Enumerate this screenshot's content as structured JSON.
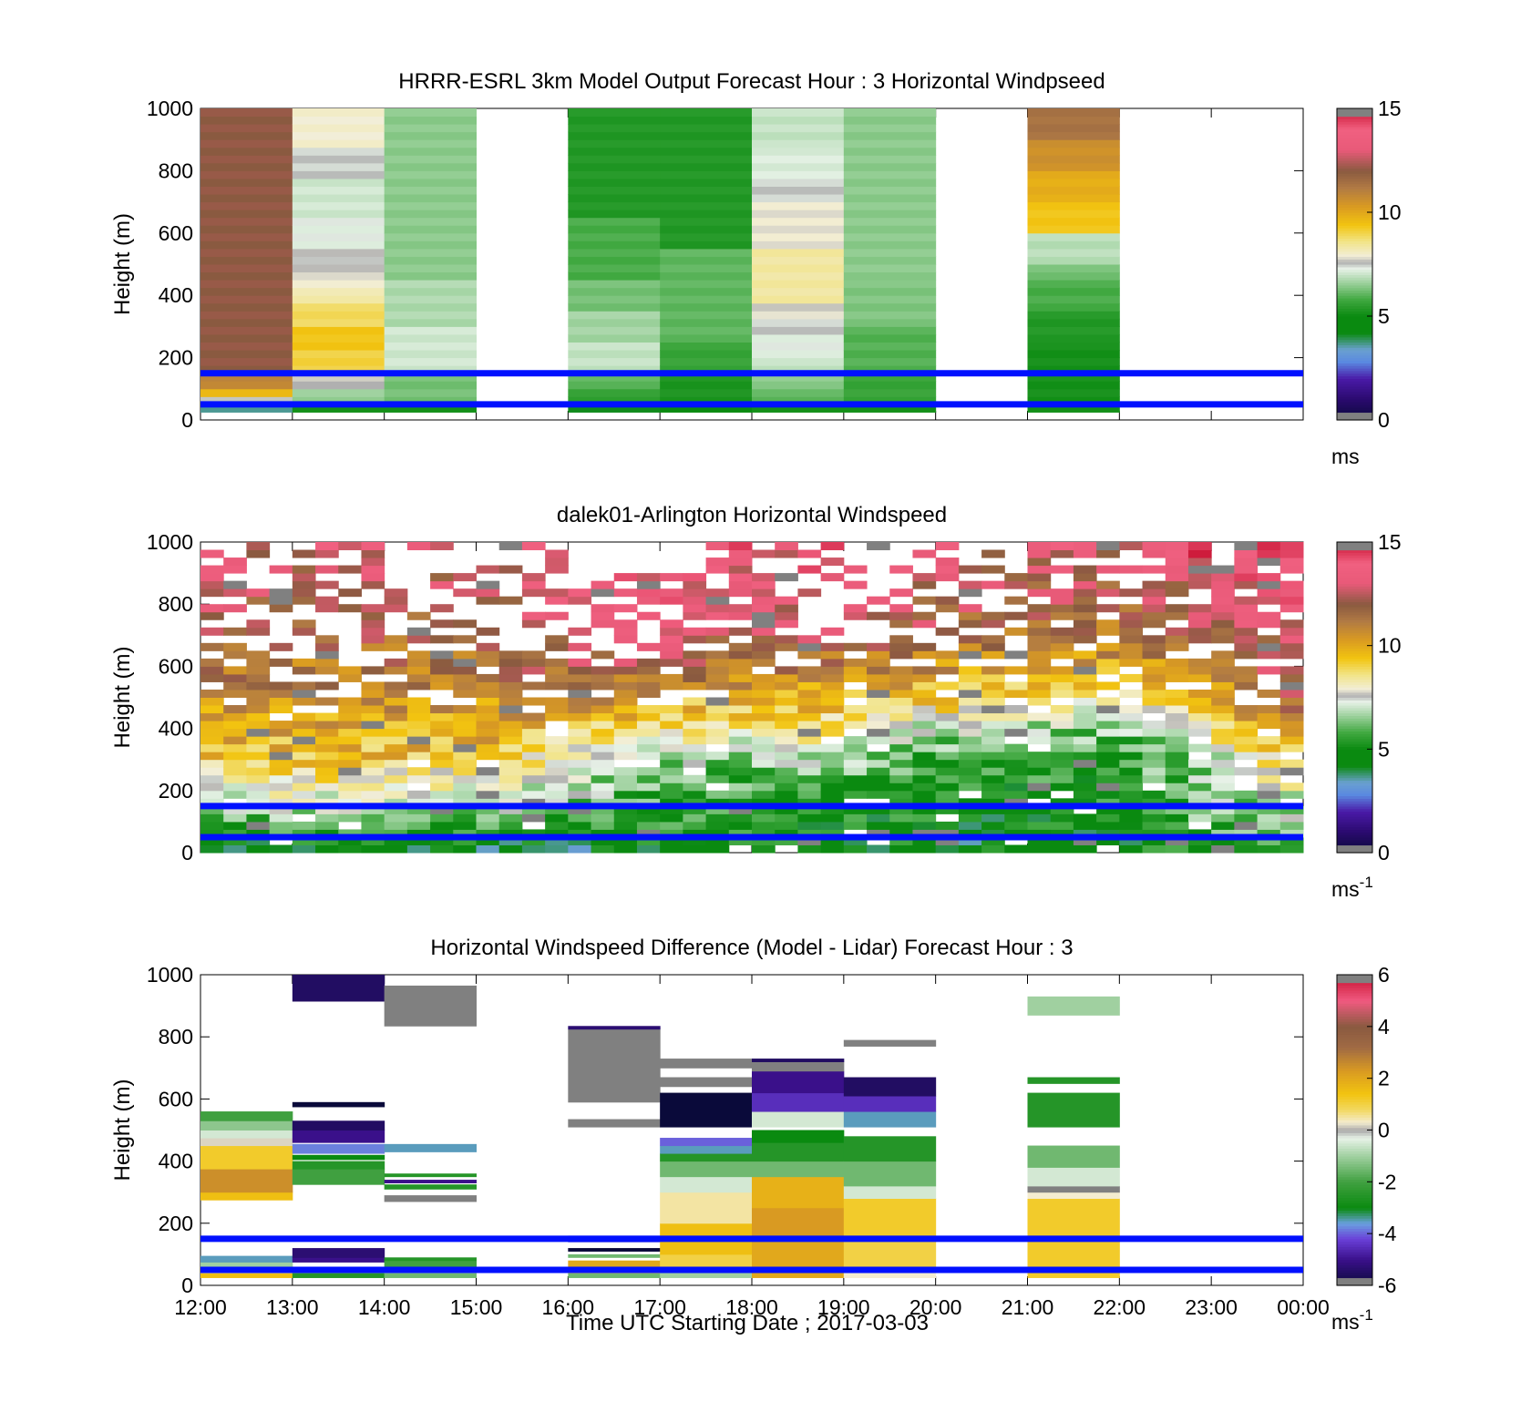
{
  "figure": {
    "xlabel": "Time UTC  Starting Date ; 2017-03-03",
    "x_ticks": [
      "12:00",
      "13:00",
      "14:00",
      "15:00",
      "16:00",
      "17:00",
      "18:00",
      "19:00",
      "20:00",
      "21:00",
      "22:00",
      "23:00",
      "00:00"
    ]
  },
  "chart_data": [
    {
      "type": "heatmap",
      "title": "HRRR-ESRL 3km Model Output   Forecast Hour : 3 Horizontal Windpseed",
      "xlabel": "",
      "ylabel": "Height (m)",
      "ylim": [
        0,
        1000
      ],
      "xlim": [
        12,
        24
      ],
      "y_ticks": [
        "0",
        "200",
        "400",
        "600",
        "800",
        "1000"
      ],
      "reference_lines_m": [
        150,
        50
      ],
      "reference_line_color": "#0010ff",
      "colorbar": {
        "ticks": [
          "0",
          "5",
          "10",
          "15"
        ],
        "range": [
          0,
          15
        ],
        "unit": "ms"
      },
      "cell_height_m": 25,
      "columns": [
        {
          "x_hour": 12,
          "segments": [
            [
              25,
              50,
              3.5
            ],
            [
              50,
              75,
              7.5
            ],
            [
              75,
              100,
              9.5
            ],
            [
              100,
              150,
              10.8
            ],
            [
              150,
              1000,
              12.0
            ]
          ]
        },
        {
          "x_hour": 13,
          "segments": [
            [
              25,
              50,
              5.0
            ],
            [
              50,
              100,
              6.5
            ],
            [
              100,
              150,
              7.6
            ],
            [
              150,
              225,
              9.0
            ],
            [
              225,
              300,
              9.3
            ],
            [
              300,
              375,
              8.8
            ],
            [
              375,
              425,
              8.2
            ],
            [
              425,
              475,
              7.8
            ],
            [
              475,
              550,
              7.5
            ],
            [
              550,
              650,
              7.2
            ],
            [
              650,
              775,
              7.0
            ],
            [
              775,
              875,
              7.4
            ],
            [
              875,
              1000,
              7.9
            ]
          ]
        },
        {
          "x_hour": 14,
          "segments": [
            [
              25,
              50,
              5.0
            ],
            [
              50,
              150,
              6.2
            ],
            [
              150,
              300,
              7.0
            ],
            [
              300,
              450,
              6.7
            ],
            [
              450,
              1000,
              6.4
            ]
          ]
        },
        {
          "x_hour": 16,
          "segments": [
            [
              25,
              50,
              4.0
            ],
            [
              50,
              100,
              5.5
            ],
            [
              100,
              150,
              6.0
            ],
            [
              150,
              250,
              6.9
            ],
            [
              250,
              350,
              6.6
            ],
            [
              350,
              450,
              6.2
            ],
            [
              450,
              650,
              5.8
            ],
            [
              650,
              1000,
              5.3
            ]
          ]
        },
        {
          "x_hour": 17,
          "segments": [
            [
              25,
              50,
              4.5
            ],
            [
              50,
              150,
              5.2
            ],
            [
              150,
              250,
              5.6
            ],
            [
              250,
              550,
              6.0
            ],
            [
              550,
              1000,
              5.3
            ]
          ]
        },
        {
          "x_hour": 18,
          "segments": [
            [
              25,
              50,
              5.0
            ],
            [
              50,
              100,
              6.0
            ],
            [
              100,
              150,
              6.4
            ],
            [
              150,
              200,
              6.9
            ],
            [
              200,
              275,
              7.2
            ],
            [
              275,
              325,
              7.4
            ],
            [
              325,
              375,
              7.7
            ],
            [
              375,
              550,
              8.3
            ],
            [
              550,
              700,
              7.8
            ],
            [
              700,
              775,
              7.4
            ],
            [
              775,
              875,
              7.1
            ],
            [
              875,
              1000,
              6.9
            ]
          ]
        },
        {
          "x_hour": 19,
          "segments": [
            [
              25,
              50,
              5.0
            ],
            [
              50,
              150,
              5.6
            ],
            [
              150,
              300,
              5.9
            ],
            [
              300,
              450,
              6.3
            ],
            [
              450,
              1000,
              6.4
            ]
          ]
        },
        {
          "x_hour": 21,
          "segments": [
            [
              25,
              50,
              5.0
            ],
            [
              50,
              250,
              5.1
            ],
            [
              250,
              350,
              5.3
            ],
            [
              350,
              450,
              5.8
            ],
            [
              450,
              500,
              6.2
            ],
            [
              500,
              600,
              6.8
            ],
            [
              600,
              700,
              9.3
            ],
            [
              700,
              800,
              9.8
            ],
            [
              800,
              900,
              10.5
            ],
            [
              900,
              1000,
              11.3
            ]
          ]
        }
      ]
    },
    {
      "type": "heatmap",
      "title": "dalek01-Arlington  Horizontal Windspeed",
      "xlabel": "",
      "ylabel": "Height (m)",
      "ylim": [
        0,
        1000
      ],
      "xlim": [
        12,
        24
      ],
      "y_ticks": [
        "0",
        "200",
        "400",
        "600",
        "800",
        "1000"
      ],
      "reference_lines_m": [
        150,
        50
      ],
      "reference_line_color": "#0010ff",
      "colorbar": {
        "ticks": [
          "0",
          "5",
          "10",
          "15"
        ],
        "range": [
          0,
          15
        ],
        "unit": "ms",
        "unit_sup": "-1"
      },
      "cell_height_m": 25,
      "time_step_hours": 0.25,
      "profiles": [
        {
          "x_hour": 12,
          "speeds": [
            4.5,
            6.0,
            7.5,
            8.5,
            9.5,
            10.0,
            10.5,
            11.0,
            11.5,
            12.0,
            12.5,
            13.0
          ]
        },
        {
          "x_hour": 15,
          "speeds": [
            4.5,
            6.0,
            7.5,
            8.5,
            9.5,
            10.0,
            10.5,
            11.0,
            11.5,
            12.0,
            12.5,
            13.0
          ]
        },
        {
          "x_hour": 16,
          "speeds": [
            4.0,
            5.5,
            6.8,
            7.5,
            8.5,
            9.5,
            10.5,
            11.5,
            12.5,
            13.0,
            13.5,
            13.5
          ]
        },
        {
          "x_hour": 17,
          "speeds": [
            5.0,
            5.2,
            5.5,
            6.0,
            7.0,
            8.5,
            9.5,
            11.0,
            12.5,
            13.5,
            13.5,
            13.5
          ]
        },
        {
          "x_hour": 19,
          "speeds": [
            5.0,
            5.0,
            5.2,
            5.8,
            7.0,
            8.5,
            9.5,
            10.5,
            11.5,
            12.5,
            13.0,
            13.5
          ]
        },
        {
          "x_hour": 20,
          "speeds": [
            4.5,
            4.8,
            5.0,
            5.3,
            5.8,
            7.0,
            9.0,
            10.0,
            11.0,
            12.0,
            12.5,
            13.0
          ]
        },
        {
          "x_hour": 22,
          "speeds": [
            4.5,
            4.8,
            5.0,
            5.2,
            5.5,
            6.5,
            8.0,
            9.5,
            10.5,
            11.5,
            12.0,
            13.0
          ]
        },
        {
          "x_hour": 23,
          "speeds": [
            5.5,
            6.0,
            6.3,
            6.8,
            7.2,
            8.5,
            9.5,
            10.5,
            11.5,
            12.5,
            13.0,
            14.0
          ]
        },
        {
          "x_hour": 24,
          "speeds": [
            5.5,
            6.5,
            7.5,
            8.5,
            9.5,
            11.0,
            12.0,
            12.5,
            13.0,
            13.5,
            14.0,
            14.5
          ]
        }
      ],
      "profile_levels_m": [
        25,
        100,
        175,
        250,
        325,
        400,
        475,
        550,
        650,
        750,
        850,
        975
      ],
      "missing_data_shown_as": "white gaps"
    },
    {
      "type": "heatmap",
      "title": "Horizontal Windspeed Difference (Model - Lidar) Forecast Hour : 3",
      "xlabel": "Time UTC  Starting Date ; 2017-03-03",
      "ylabel": "Height (m)",
      "ylim": [
        0,
        1000
      ],
      "xlim": [
        12,
        24
      ],
      "y_ticks": [
        "0",
        "200",
        "400",
        "600",
        "800",
        "1000"
      ],
      "reference_lines_m": [
        150,
        50
      ],
      "reference_line_color": "#0010ff",
      "colorbar": {
        "ticks": [
          "-6",
          "-4",
          "-2",
          "0",
          "2",
          "4",
          "6"
        ],
        "range": [
          -6,
          6
        ],
        "unit": "ms",
        "unit_sup": "-1"
      },
      "columns": [
        {
          "x_hour": 12,
          "segments": [
            [
              25,
              40,
              1.5
            ],
            [
              40,
              60,
              0.5
            ],
            [
              60,
              75,
              -1.0
            ],
            [
              75,
              95,
              -3.5
            ],
            [
              275,
              300,
              1.5
            ],
            [
              300,
              375,
              2.5
            ],
            [
              375,
              450,
              1.2
            ],
            [
              450,
              475,
              0.2
            ],
            [
              475,
              500,
              -0.5
            ],
            [
              500,
              530,
              -1.2
            ],
            [
              530,
              560,
              -2.0
            ]
          ]
        },
        {
          "x_hour": 13,
          "segments": [
            [
              25,
              40,
              -2.5
            ],
            [
              40,
              60,
              -1.5
            ],
            [
              75,
              90,
              -5.0
            ],
            [
              90,
              120,
              -5.3
            ],
            [
              325,
              375,
              -2.0
            ],
            [
              375,
              400,
              -2.5
            ],
            [
              405,
              420,
              -3.0
            ],
            [
              425,
              455,
              -3.8
            ],
            [
              460,
              500,
              -5.0
            ],
            [
              500,
              530,
              -5.5
            ],
            [
              575,
              590,
              -6.0
            ],
            [
              915,
              1000,
              -5.5
            ]
          ]
        },
        {
          "x_hour": 14,
          "segments": [
            [
              25,
              40,
              -1.5
            ],
            [
              40,
              60,
              -1.0
            ],
            [
              60,
              80,
              -2.0
            ],
            [
              80,
              90,
              -2.5
            ],
            [
              270,
              290,
              -6.3
            ],
            [
              310,
              325,
              -2.5
            ],
            [
              330,
              340,
              -5.0
            ],
            [
              350,
              360,
              -2.5
            ],
            [
              430,
              455,
              -3.5
            ],
            [
              835,
              965,
              -6.3
            ]
          ]
        },
        {
          "x_hour": 16,
          "segments": [
            [
              25,
              40,
              -1.5
            ],
            [
              40,
              60,
              1.0
            ],
            [
              60,
              80,
              2.0
            ],
            [
              90,
              100,
              -1.5
            ],
            [
              110,
              120,
              -6.0
            ],
            [
              140,
              160,
              -4.0
            ],
            [
              510,
              535,
              -6.3
            ],
            [
              590,
              825,
              -6.3
            ],
            [
              825,
              835,
              -5.3
            ]
          ]
        },
        {
          "x_hour": 17,
          "segments": [
            [
              25,
              50,
              -1.0
            ],
            [
              50,
              100,
              1.0
            ],
            [
              100,
              200,
              1.5
            ],
            [
              200,
              300,
              0.5
            ],
            [
              300,
              350,
              -0.5
            ],
            [
              350,
              400,
              -1.5
            ],
            [
              400,
              425,
              -2.5
            ],
            [
              425,
              450,
              -3.5
            ],
            [
              450,
              475,
              -4.0
            ],
            [
              510,
              620,
              -6.0
            ],
            [
              640,
              670,
              -6.3
            ],
            [
              700,
              730,
              -6.3
            ]
          ]
        },
        {
          "x_hour": 18,
          "segments": [
            [
              25,
              150,
              2.0
            ],
            [
              150,
              250,
              2.3
            ],
            [
              250,
              350,
              1.8
            ],
            [
              350,
              400,
              -1.5
            ],
            [
              400,
              460,
              -2.5
            ],
            [
              460,
              500,
              -3.0
            ],
            [
              510,
              560,
              -0.5
            ],
            [
              560,
              620,
              -4.5
            ],
            [
              620,
              690,
              -5.0
            ],
            [
              690,
              720,
              -6.3
            ],
            [
              720,
              730,
              -5.5
            ]
          ]
        },
        {
          "x_hour": 19,
          "segments": [
            [
              25,
              60,
              0.3
            ],
            [
              60,
              150,
              1.0
            ],
            [
              150,
              280,
              1.2
            ],
            [
              280,
              320,
              -0.5
            ],
            [
              320,
              400,
              -1.5
            ],
            [
              400,
              480,
              -2.5
            ],
            [
              510,
              560,
              -3.5
            ],
            [
              560,
              610,
              -4.5
            ],
            [
              610,
              670,
              -5.5
            ],
            [
              770,
              790,
              -6.3
            ]
          ]
        },
        {
          "x_hour": 21,
          "segments": [
            [
              25,
              60,
              1.2
            ],
            [
              60,
              150,
              1.2
            ],
            [
              150,
              280,
              1.2
            ],
            [
              280,
              300,
              0.3
            ],
            [
              300,
              320,
              -6.3
            ],
            [
              320,
              380,
              -0.5
            ],
            [
              380,
              450,
              -1.5
            ],
            [
              510,
              620,
              -2.5
            ],
            [
              650,
              670,
              -2.5
            ],
            [
              870,
              930,
              -1.0
            ]
          ]
        }
      ]
    }
  ]
}
